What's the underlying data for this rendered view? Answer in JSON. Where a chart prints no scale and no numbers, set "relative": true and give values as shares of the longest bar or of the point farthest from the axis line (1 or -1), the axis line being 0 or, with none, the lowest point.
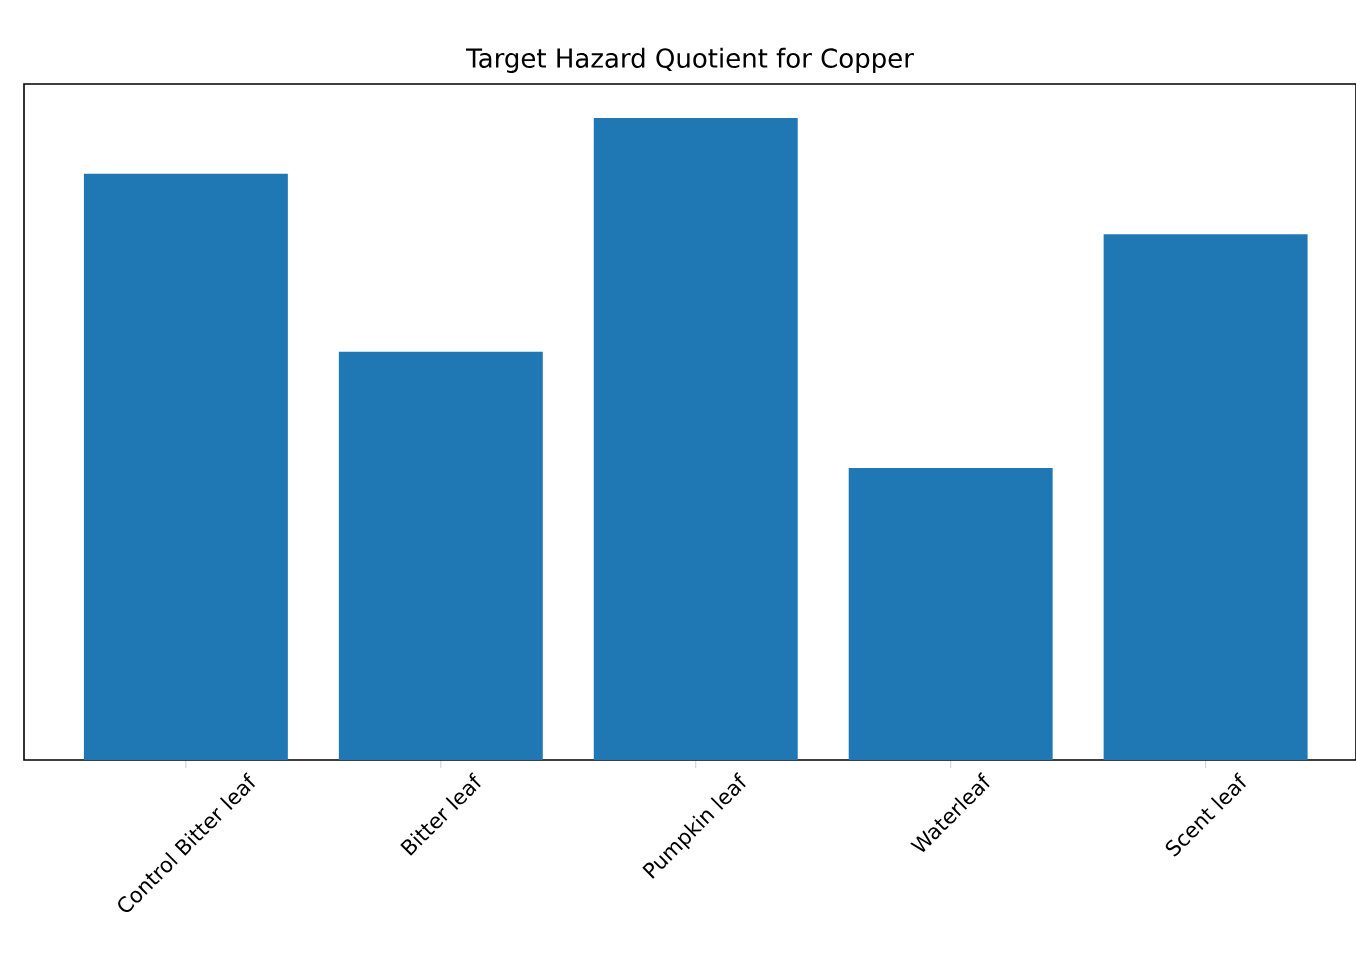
{
  "chart_data": {
    "type": "bar",
    "title": "Target Hazard Quotient for Copper",
    "categories": [
      "Control Bitter leaf",
      "Bitter leaf",
      "Pumpkin leaf",
      "Waterleaf",
      "Scent leaf"
    ],
    "values": [
      0.913,
      0.636,
      1,
      0.455,
      0.819
    ],
    "color": "#1f77b4",
    "relative": true
  }
}
